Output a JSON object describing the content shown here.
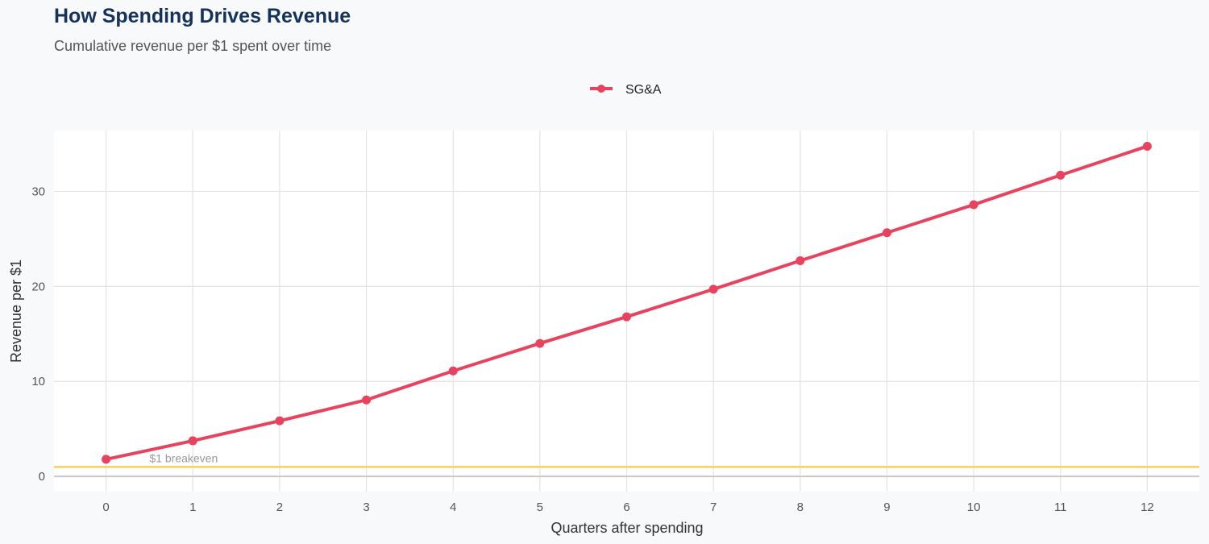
{
  "chart_data": {
    "type": "line",
    "title": "How Spending Drives Revenue",
    "subtitle": "Cumulative revenue per $1 spent over time",
    "xlabel": "Quarters after spending",
    "ylabel": "Revenue per $1",
    "x": [
      0,
      1,
      2,
      3,
      4,
      5,
      6,
      7,
      8,
      9,
      10,
      11,
      12
    ],
    "series": [
      {
        "name": "SG&A",
        "color": "#e8435e",
        "values": [
          1.8,
          3.75,
          5.85,
          8.05,
          11.1,
          14.0,
          16.8,
          19.7,
          22.7,
          25.65,
          28.6,
          31.7,
          34.75
        ]
      }
    ],
    "xticks": [
      "0",
      "1",
      "2",
      "3",
      "4",
      "5",
      "6",
      "7",
      "8",
      "9",
      "10",
      "11",
      "12"
    ],
    "yticks": [
      "0",
      "10",
      "20",
      "30"
    ],
    "ylim": [
      -1.6,
      36.4
    ],
    "xlim": [
      -0.6,
      12.6
    ],
    "grid": true,
    "legend": "top-center",
    "reference_line": {
      "y": 1,
      "label": "$1 breakeven",
      "color": "#f9cf5f"
    }
  }
}
